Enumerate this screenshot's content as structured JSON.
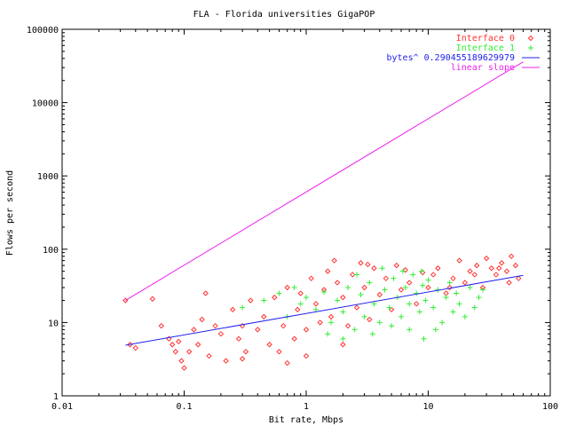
{
  "chart_data": {
    "type": "scatter",
    "title": "FLA - Florida universities GigaPOP",
    "xlabel": "Bit rate, Mbps",
    "ylabel": "Flows per second",
    "x_scale": "log",
    "y_scale": "log",
    "xlim": [
      0.01,
      100
    ],
    "ylim": [
      1,
      100000
    ],
    "x_tick_labels": [
      "0.01",
      "0.1",
      "1",
      "10",
      "100"
    ],
    "y_tick_labels": [
      "1",
      "10",
      "100",
      "1000",
      "10000",
      "100000"
    ],
    "grid": false,
    "legend_position": "top-right",
    "colors": {
      "interface0": "#ff3333",
      "interface1": "#33ee33",
      "fit": "#2222ee",
      "linear": "#ee22ee"
    },
    "series": [
      {
        "name": "Interface 0",
        "kind": "points",
        "marker": "diamond",
        "points": [
          [
            0.033,
            20
          ],
          [
            0.036,
            5
          ],
          [
            0.04,
            4.5
          ],
          [
            0.055,
            21
          ],
          [
            0.065,
            9
          ],
          [
            0.075,
            6
          ],
          [
            0.08,
            5
          ],
          [
            0.085,
            4
          ],
          [
            0.09,
            5.5
          ],
          [
            0.095,
            3
          ],
          [
            0.1,
            2.4
          ],
          [
            0.11,
            4
          ],
          [
            0.12,
            8
          ],
          [
            0.13,
            5
          ],
          [
            0.14,
            11
          ],
          [
            0.15,
            25
          ],
          [
            0.16,
            3.5
          ],
          [
            0.18,
            9
          ],
          [
            0.2,
            7
          ],
          [
            0.22,
            3
          ],
          [
            0.25,
            15
          ],
          [
            0.28,
            6
          ],
          [
            0.3,
            9
          ],
          [
            0.32,
            4
          ],
          [
            0.35,
            20
          ],
          [
            0.4,
            8
          ],
          [
            0.45,
            12
          ],
          [
            0.5,
            5
          ],
          [
            0.55,
            22
          ],
          [
            0.6,
            4
          ],
          [
            0.65,
            9
          ],
          [
            0.7,
            30
          ],
          [
            0.8,
            6
          ],
          [
            0.85,
            15
          ],
          [
            0.9,
            25
          ],
          [
            1.0,
            8
          ],
          [
            1.1,
            40
          ],
          [
            1.2,
            18
          ],
          [
            1.3,
            10
          ],
          [
            1.4,
            28
          ],
          [
            1.5,
            50
          ],
          [
            1.6,
            12
          ],
          [
            1.8,
            35
          ],
          [
            2.0,
            22
          ],
          [
            2.2,
            9
          ],
          [
            2.4,
            45
          ],
          [
            2.6,
            16
          ],
          [
            2.8,
            65
          ],
          [
            3.0,
            30
          ],
          [
            3.3,
            11
          ],
          [
            3.6,
            55
          ],
          [
            4.0,
            24
          ],
          [
            4.5,
            40
          ],
          [
            5.0,
            15
          ],
          [
            5.5,
            60
          ],
          [
            6.0,
            28
          ],
          [
            7.0,
            35
          ],
          [
            8.0,
            18
          ],
          [
            9.0,
            48
          ],
          [
            10.0,
            30
          ],
          [
            12.0,
            55
          ],
          [
            14.0,
            25
          ],
          [
            16.0,
            40
          ],
          [
            18.0,
            70
          ],
          [
            20.0,
            35
          ],
          [
            22.0,
            50
          ],
          [
            25.0,
            60
          ],
          [
            28.0,
            30
          ],
          [
            30.0,
            75
          ],
          [
            33.0,
            55
          ],
          [
            36.0,
            45
          ],
          [
            40.0,
            65
          ],
          [
            44.0,
            50
          ],
          [
            48.0,
            80
          ],
          [
            52.0,
            60
          ],
          [
            55.0,
            40
          ],
          [
            1.0,
            3.5
          ],
          [
            0.7,
            2.8
          ],
          [
            2.0,
            5
          ],
          [
            0.3,
            3.2
          ],
          [
            1.7,
            70
          ],
          [
            3.2,
            62
          ],
          [
            6.5,
            52
          ],
          [
            11.0,
            45
          ],
          [
            15.0,
            30
          ],
          [
            24.0,
            45
          ],
          [
            38.0,
            55
          ],
          [
            46.0,
            35
          ]
        ]
      },
      {
        "name": "Interface 1",
        "kind": "points",
        "marker": "plus",
        "points": [
          [
            0.3,
            16
          ],
          [
            0.45,
            20
          ],
          [
            0.6,
            25
          ],
          [
            0.7,
            12
          ],
          [
            0.8,
            30
          ],
          [
            0.9,
            18
          ],
          [
            1.0,
            22
          ],
          [
            1.2,
            15
          ],
          [
            1.4,
            26
          ],
          [
            1.6,
            10
          ],
          [
            1.8,
            20
          ],
          [
            2.0,
            14
          ],
          [
            2.2,
            30
          ],
          [
            2.5,
            8
          ],
          [
            2.8,
            24
          ],
          [
            3.0,
            12
          ],
          [
            3.3,
            35
          ],
          [
            3.6,
            18
          ],
          [
            4.0,
            10
          ],
          [
            4.4,
            28
          ],
          [
            4.8,
            16
          ],
          [
            5.2,
            40
          ],
          [
            5.6,
            22
          ],
          [
            6.0,
            12
          ],
          [
            6.5,
            30
          ],
          [
            7.0,
            18
          ],
          [
            7.5,
            45
          ],
          [
            8.0,
            25
          ],
          [
            8.5,
            14
          ],
          [
            9.0,
            32
          ],
          [
            9.5,
            20
          ],
          [
            10.0,
            38
          ],
          [
            11.0,
            16
          ],
          [
            12.0,
            28
          ],
          [
            13.0,
            10
          ],
          [
            14.0,
            22
          ],
          [
            15.0,
            35
          ],
          [
            16.0,
            14
          ],
          [
            17.0,
            25
          ],
          [
            18.0,
            18
          ],
          [
            20.0,
            12
          ],
          [
            22.0,
            30
          ],
          [
            24.0,
            16
          ],
          [
            26.0,
            22
          ],
          [
            28.0,
            28
          ],
          [
            3.5,
            7
          ],
          [
            5.0,
            9
          ],
          [
            7.0,
            8
          ],
          [
            2.0,
            6
          ],
          [
            1.5,
            7
          ],
          [
            4.2,
            55
          ],
          [
            6.2,
            50
          ],
          [
            8.8,
            50
          ],
          [
            2.6,
            45
          ],
          [
            11.5,
            8
          ],
          [
            9.2,
            6
          ]
        ]
      },
      {
        "name": "bytes^ 0.290455189629979",
        "kind": "line",
        "x": [
          0.033,
          60
        ],
        "y": [
          4.9,
          44
        ]
      },
      {
        "name": "linear slope",
        "kind": "line",
        "x": [
          0.033,
          60
        ],
        "y": [
          20,
          36000
        ]
      }
    ]
  }
}
